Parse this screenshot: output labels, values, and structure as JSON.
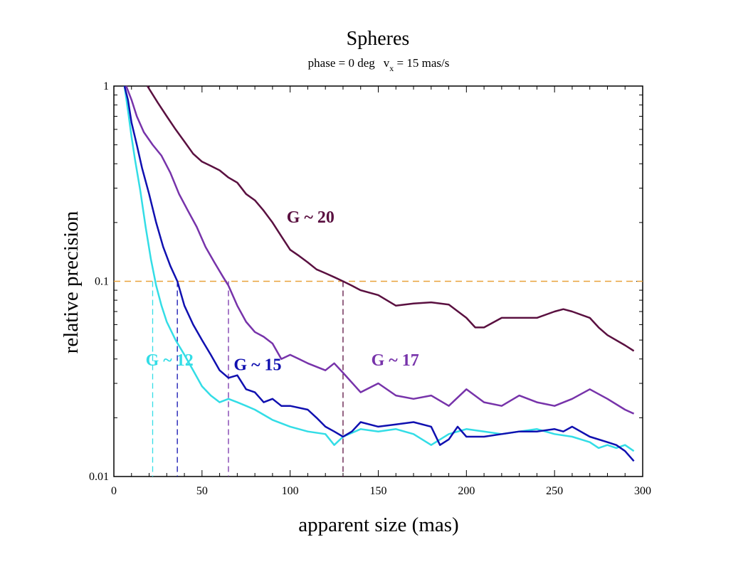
{
  "chart_data": {
    "type": "line",
    "title": "Spheres",
    "subtitle": {
      "part1": "phase = 0 deg",
      "part2": "v",
      "part2_sub": "x",
      "part3": " = 15 mas/s"
    },
    "xlabel": "apparent size (mas)",
    "ylabel": "relative precision",
    "xlim": [
      0,
      300
    ],
    "ylim": [
      0.01,
      1
    ],
    "yscale": "log",
    "x_ticks": [
      0,
      50,
      100,
      150,
      200,
      250,
      300
    ],
    "y_ticks": [
      {
        "value": 1,
        "label": "1"
      },
      {
        "value": 0.1,
        "label": "0.1"
      },
      {
        "value": 0.01,
        "label": "0.01"
      }
    ],
    "grid": false,
    "threshold": {
      "y": 0.1,
      "color": "#e8a13a"
    },
    "series": [
      {
        "name": "G ~ 12",
        "color": "#33dde6",
        "label_at": {
          "x": 18,
          "y": 0.037
        },
        "crossing_x": 22,
        "x": [
          6,
          8,
          10,
          12,
          15,
          18,
          21,
          24,
          27,
          30,
          35,
          40,
          45,
          50,
          55,
          60,
          65,
          70,
          75,
          80,
          90,
          100,
          110,
          120,
          125,
          130,
          140,
          150,
          160,
          170,
          180,
          190,
          200,
          210,
          220,
          230,
          240,
          250,
          260,
          270,
          275,
          280,
          285,
          290,
          295
        ],
        "y": [
          1.0,
          0.75,
          0.55,
          0.42,
          0.29,
          0.19,
          0.13,
          0.095,
          0.075,
          0.062,
          0.05,
          0.042,
          0.035,
          0.029,
          0.026,
          0.024,
          0.025,
          0.024,
          0.023,
          0.022,
          0.0195,
          0.018,
          0.017,
          0.0165,
          0.0145,
          0.016,
          0.0175,
          0.017,
          0.0175,
          0.0165,
          0.0145,
          0.0165,
          0.0175,
          0.017,
          0.0165,
          0.017,
          0.0175,
          0.0165,
          0.016,
          0.015,
          0.014,
          0.0145,
          0.014,
          0.0145,
          0.0135
        ]
      },
      {
        "name": "G ~ 15",
        "color": "#1010b0",
        "label_at": {
          "x": 68,
          "y": 0.035
        },
        "crossing_x": 36,
        "x": [
          6,
          8,
          10,
          13,
          16,
          20,
          24,
          28,
          32,
          36,
          40,
          45,
          50,
          55,
          60,
          65,
          70,
          75,
          80,
          85,
          90,
          95,
          100,
          110,
          115,
          120,
          125,
          130,
          135,
          140,
          150,
          160,
          170,
          180,
          185,
          190,
          195,
          200,
          210,
          220,
          230,
          240,
          250,
          255,
          260,
          270,
          280,
          285,
          290,
          295
        ],
        "y": [
          1.0,
          0.85,
          0.65,
          0.5,
          0.38,
          0.28,
          0.2,
          0.15,
          0.12,
          0.1,
          0.075,
          0.06,
          0.05,
          0.042,
          0.035,
          0.032,
          0.033,
          0.028,
          0.027,
          0.024,
          0.025,
          0.023,
          0.023,
          0.022,
          0.02,
          0.018,
          0.017,
          0.016,
          0.017,
          0.019,
          0.018,
          0.0185,
          0.019,
          0.018,
          0.0145,
          0.0155,
          0.018,
          0.016,
          0.016,
          0.0165,
          0.017,
          0.017,
          0.0175,
          0.017,
          0.018,
          0.016,
          0.015,
          0.0145,
          0.0135,
          0.012
        ]
      },
      {
        "name": "G ~ 17",
        "color": "#7733aa",
        "label_at": {
          "x": 146,
          "y": 0.037
        },
        "crossing_x": 65,
        "x": [
          7,
          10,
          13,
          17,
          22,
          27,
          32,
          37,
          42,
          47,
          52,
          57,
          62,
          65,
          70,
          75,
          80,
          85,
          90,
          95,
          100,
          105,
          110,
          120,
          125,
          130,
          140,
          150,
          160,
          170,
          180,
          190,
          200,
          210,
          220,
          230,
          240,
          250,
          260,
          270,
          280,
          290,
          295
        ],
        "y": [
          1.0,
          0.85,
          0.7,
          0.58,
          0.5,
          0.44,
          0.36,
          0.28,
          0.23,
          0.19,
          0.15,
          0.125,
          0.105,
          0.095,
          0.075,
          0.062,
          0.055,
          0.052,
          0.048,
          0.04,
          0.042,
          0.04,
          0.038,
          0.035,
          0.038,
          0.034,
          0.027,
          0.03,
          0.026,
          0.025,
          0.026,
          0.023,
          0.028,
          0.024,
          0.023,
          0.026,
          0.024,
          0.023,
          0.025,
          0.028,
          0.025,
          0.022,
          0.021
        ]
      },
      {
        "name": "G ~ 20",
        "color": "#5a1040",
        "label_at": {
          "x": 98,
          "y": 0.2
        },
        "crossing_x": 130,
        "x": [
          19,
          25,
          30,
          35,
          40,
          45,
          50,
          55,
          60,
          65,
          70,
          75,
          80,
          85,
          90,
          95,
          100,
          105,
          110,
          115,
          120,
          125,
          130,
          135,
          140,
          150,
          160,
          170,
          180,
          190,
          200,
          205,
          210,
          220,
          230,
          240,
          250,
          255,
          260,
          270,
          275,
          280,
          290,
          295
        ],
        "y": [
          1.0,
          0.82,
          0.7,
          0.6,
          0.52,
          0.45,
          0.41,
          0.39,
          0.37,
          0.34,
          0.32,
          0.28,
          0.26,
          0.23,
          0.2,
          0.17,
          0.145,
          0.135,
          0.125,
          0.115,
          0.11,
          0.105,
          0.1,
          0.095,
          0.09,
          0.085,
          0.075,
          0.077,
          0.078,
          0.076,
          0.065,
          0.058,
          0.058,
          0.065,
          0.065,
          0.065,
          0.07,
          0.072,
          0.07,
          0.065,
          0.058,
          0.053,
          0.047,
          0.044
        ]
      }
    ]
  }
}
